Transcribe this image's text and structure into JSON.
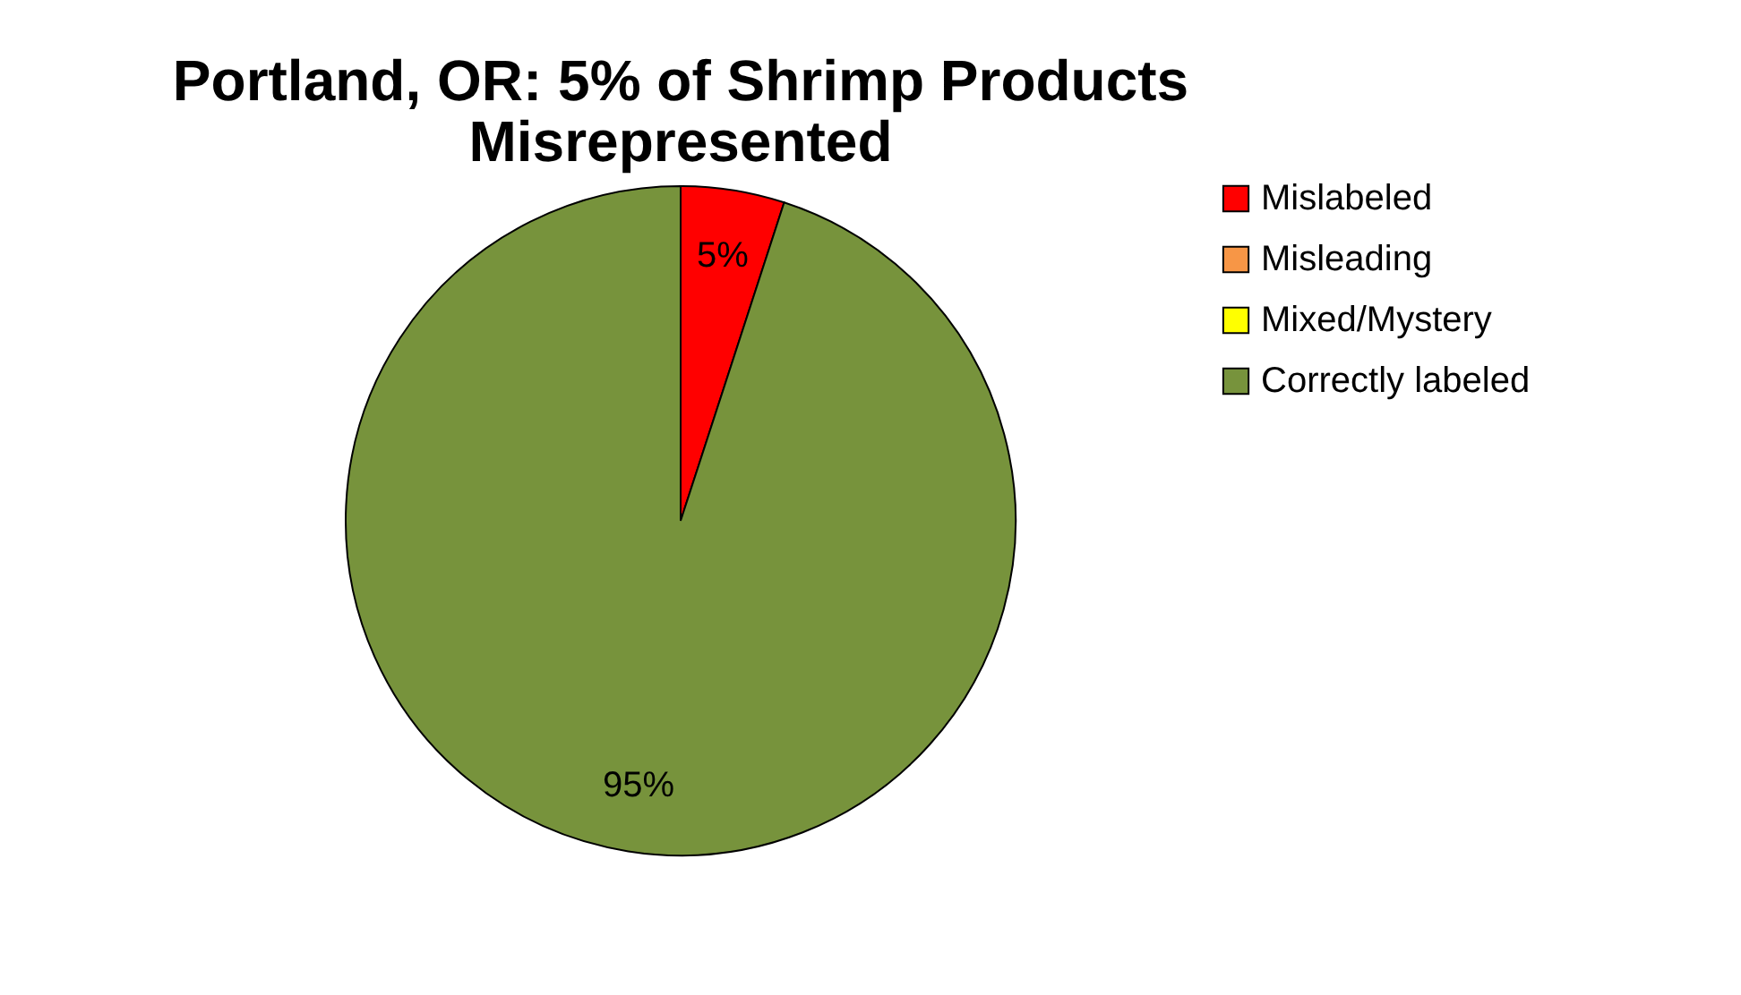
{
  "chart_data": {
    "type": "pie",
    "title": "Portland, OR: 5% of Shrimp Products Misrepresented",
    "categories": [
      "Mislabeled",
      "Misleading",
      "Mixed/Mystery",
      "Correctly labeled"
    ],
    "values": [
      5,
      0,
      0,
      95
    ],
    "colors": [
      "#ff0000",
      "#f79646",
      "#ffff00",
      "#77933c"
    ],
    "value_labels": [
      "5%",
      null,
      null,
      "95%"
    ],
    "legend": "right"
  }
}
